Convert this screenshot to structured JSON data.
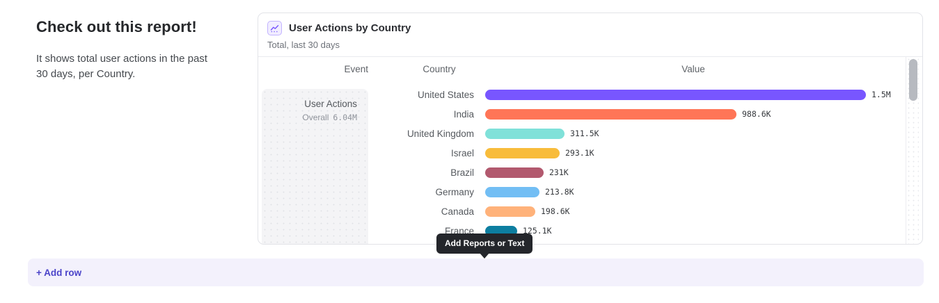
{
  "intro": {
    "title": "Check out this report!",
    "body": "It shows total user actions in the past 30 days, per Country."
  },
  "report_card": {
    "title": "User Actions by Country",
    "subtitle": "Total, last 30 days",
    "columns": [
      "Event",
      "Country",
      "Value"
    ],
    "event": {
      "name": "User Actions",
      "aggregation": "Overall",
      "total": "6.04M"
    }
  },
  "chart_data": {
    "type": "bar",
    "orientation": "horizontal",
    "title": "User Actions by Country",
    "subtitle": "Total, last 30 days",
    "categories": [
      "United States",
      "India",
      "United Kingdom",
      "Israel",
      "Brazil",
      "Germany",
      "Canada",
      "France"
    ],
    "values": [
      1500000,
      988600,
      311500,
      293100,
      231000,
      213800,
      198600,
      125100
    ],
    "value_labels": [
      "1.5M",
      "988.6K",
      "311.5K",
      "293.1K",
      "231K",
      "213.8K",
      "198.6K",
      "125.1K"
    ],
    "bar_colors": [
      "#7856FF",
      "#FF7557",
      "#80E1D9",
      "#F8BC3B",
      "#B2596E",
      "#72BEF4",
      "#FFB27A",
      "#0D7EA0"
    ],
    "xlim": [
      0,
      1500000
    ],
    "grid": false,
    "legend": false,
    "total": {
      "label": "Overall",
      "value": "6.04M"
    }
  },
  "tooltip": {
    "label": "Add Reports or Text"
  },
  "footer": {
    "add_row_label": "+ Add row"
  },
  "colors": {
    "accent": "#7856FF",
    "tooltip_bg": "#24262B",
    "footer_bg": "#F3F1FC",
    "add_row_text": "#4B44C9",
    "card_border": "#E2E3E8"
  }
}
